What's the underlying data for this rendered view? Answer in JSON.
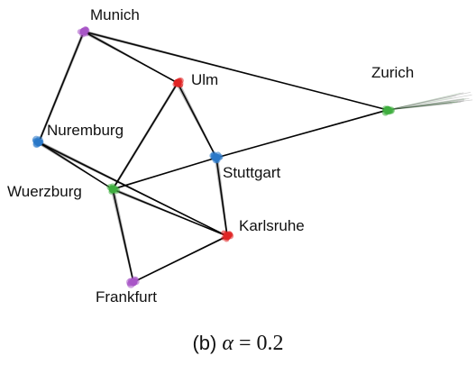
{
  "diagram": {
    "nodes": [
      {
        "id": "munich",
        "label": "Munich",
        "color": "#a855c7"
      },
      {
        "id": "ulm",
        "label": "Ulm",
        "color": "#e02424"
      },
      {
        "id": "zurich",
        "label": "Zurich",
        "color": "#3fae3f"
      },
      {
        "id": "nuremburg",
        "label": "Nuremburg",
        "color": "#2a78c8"
      },
      {
        "id": "stuttgart",
        "label": "Stuttgart",
        "color": "#2a78c8"
      },
      {
        "id": "wuerzburg",
        "label": "Wuerzburg",
        "color": "#3fae3f"
      },
      {
        "id": "karlsruhe",
        "label": "Karlsruhe",
        "color": "#e02424"
      },
      {
        "id": "frankfurt",
        "label": "Frankfurt",
        "color": "#a855c7"
      }
    ],
    "edges": [
      [
        "munich",
        "ulm"
      ],
      [
        "munich",
        "zurich"
      ],
      [
        "munich",
        "nuremburg"
      ],
      [
        "ulm",
        "stuttgart"
      ],
      [
        "ulm",
        "wuerzburg"
      ],
      [
        "nuremburg",
        "wuerzburg"
      ],
      [
        "nuremburg",
        "karlsruhe"
      ],
      [
        "stuttgart",
        "karlsruhe"
      ],
      [
        "stuttgart",
        "zurich"
      ],
      [
        "stuttgart",
        "wuerzburg"
      ],
      [
        "wuerzburg",
        "frankfurt"
      ],
      [
        "frankfurt",
        "karlsruhe"
      ],
      [
        "wuerzburg",
        "karlsruhe"
      ]
    ]
  },
  "caption": {
    "prefix": "(b)",
    "symbol": "α",
    "equals": "=",
    "value": "0.2"
  }
}
